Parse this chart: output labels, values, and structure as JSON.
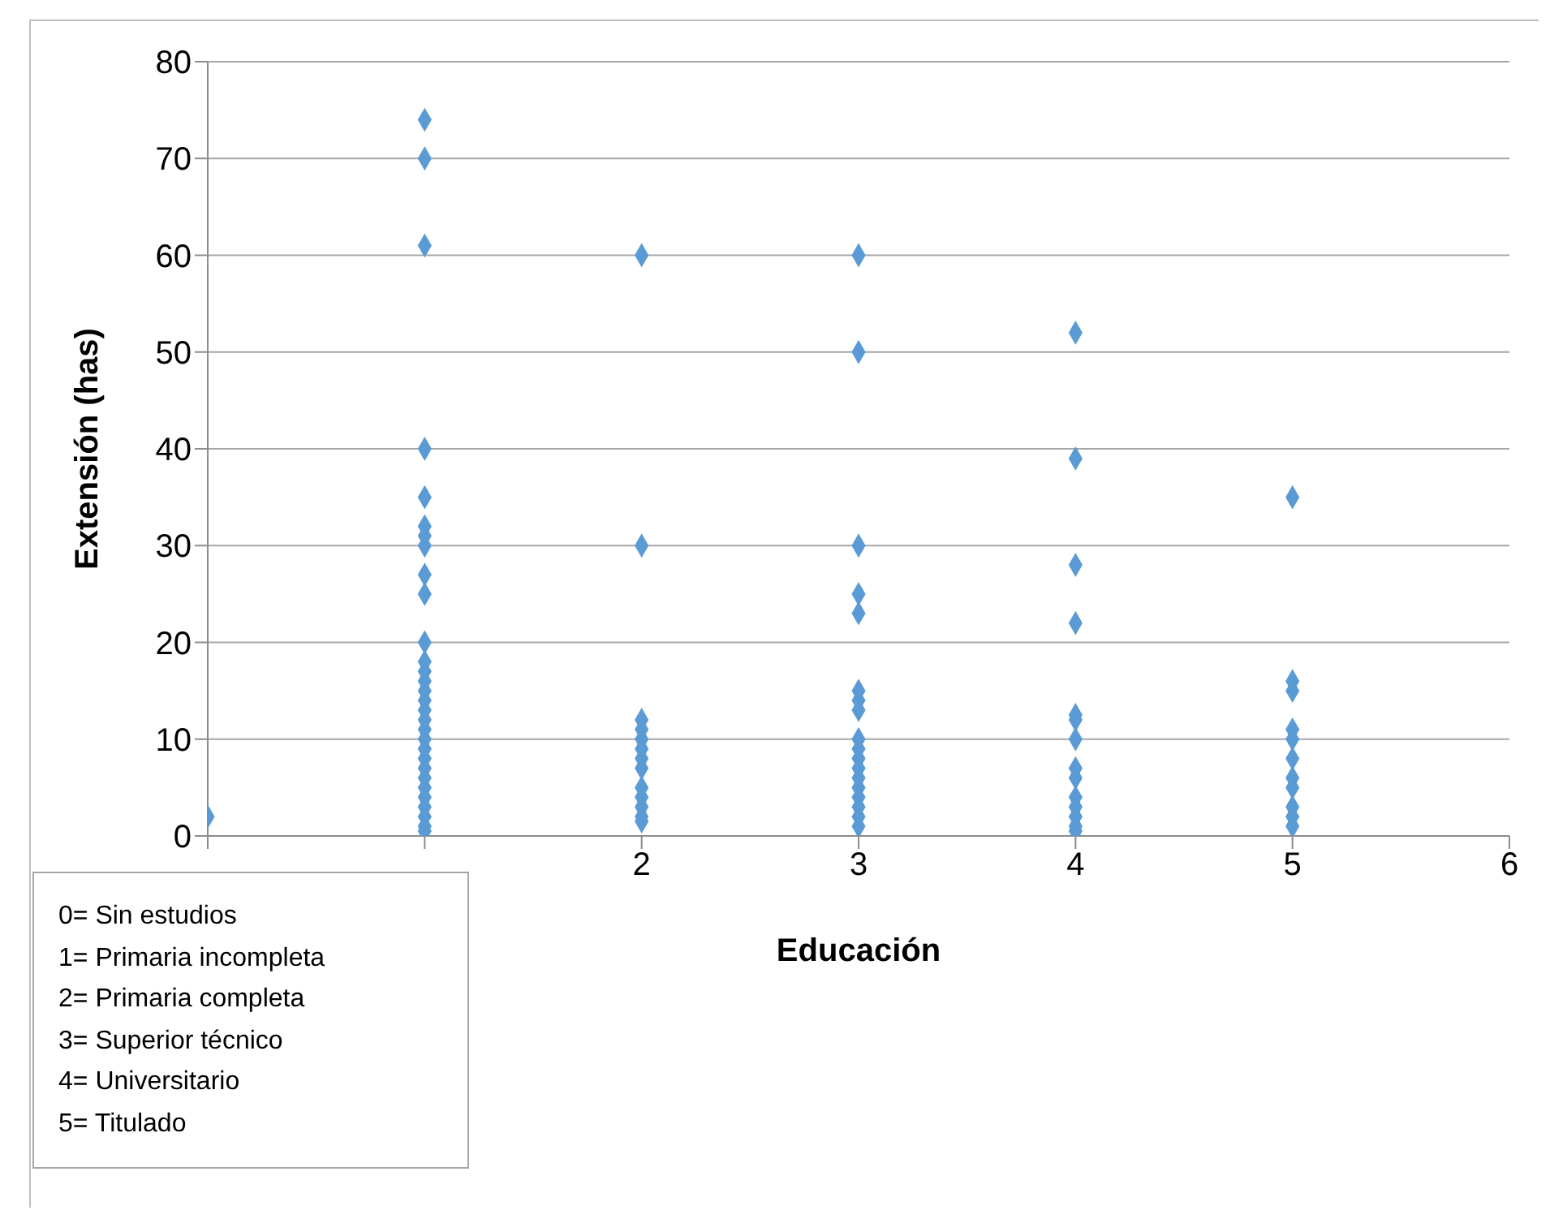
{
  "chart_data": {
    "type": "scatter",
    "xlabel": "Educación",
    "ylabel": "Extensión (has)",
    "x": [
      0,
      1,
      1,
      1,
      1,
      1,
      1,
      1,
      1,
      1,
      1,
      1,
      1,
      1,
      1,
      1,
      1,
      1,
      1,
      1,
      1,
      1,
      1,
      1,
      1,
      1,
      1,
      1,
      1,
      1,
      1,
      2,
      2,
      2,
      2,
      2,
      2,
      2,
      2,
      2,
      2,
      2,
      2,
      2,
      3,
      3,
      3,
      3,
      3,
      3,
      3,
      3,
      3,
      3,
      3,
      3,
      3,
      3,
      3,
      3,
      3,
      3,
      4,
      4,
      4,
      4,
      4,
      4,
      4,
      4,
      4,
      4,
      4,
      4,
      4,
      4,
      5,
      5,
      5,
      5,
      5,
      5,
      5,
      5,
      5,
      5,
      5
    ],
    "series": [
      {
        "color": "#5b9bd5",
        "values": [
          2,
          74,
          70,
          61,
          40,
          35,
          32,
          31,
          30,
          27,
          25,
          20,
          18,
          17,
          16,
          15,
          14,
          13,
          12,
          11,
          10,
          9,
          8,
          7,
          6,
          5,
          4,
          3,
          2,
          1,
          0.5,
          60,
          30,
          12,
          11,
          10,
          9,
          8,
          7,
          5,
          4,
          3,
          2,
          1.5,
          60,
          50,
          30,
          25,
          23,
          15,
          14,
          13,
          10,
          9,
          8,
          7,
          6,
          5,
          4,
          3,
          2,
          1,
          52,
          39,
          28,
          22,
          12.5,
          12,
          10,
          7,
          6,
          4,
          3,
          2,
          1,
          0.5,
          35,
          16,
          15,
          11,
          10,
          8,
          6,
          5,
          3,
          2,
          1
        ]
      }
    ],
    "xlim": [
      0,
      6
    ],
    "xticks": [
      {
        "value": 0,
        "label": null
      },
      {
        "value": 1,
        "label": null
      },
      2,
      3,
      4,
      5,
      6
    ],
    "ylim": [
      0,
      80
    ],
    "yticks": [
      0,
      10,
      20,
      30,
      40,
      50,
      60,
      70,
      80
    ],
    "grid": "y",
    "marker": "diamond",
    "legend": false,
    "annotations": [
      "0= Sin estudios",
      "1= Primaria incompleta",
      "2= Primaria completa",
      "3= Superior técnico",
      "4= Universitario",
      "5= Titulado"
    ]
  }
}
